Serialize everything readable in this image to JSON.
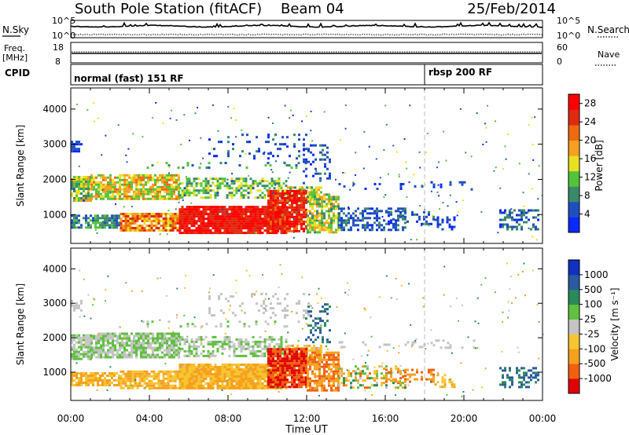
{
  "header": {
    "station": "South Pole Station (fitACF)",
    "beam": "Beam 04",
    "date": "25/Feb/2014"
  },
  "noise_panel": {
    "left_label": "N.Sky",
    "right_label": "N.Search",
    "left_ticks": [
      "10^5",
      "10^0"
    ],
    "right_ticks": [
      "10^5",
      "10^0"
    ]
  },
  "freq_panel": {
    "left_label_1": "Freq.",
    "left_label_2": "[MHz]",
    "right_label": "Nave",
    "left_ticks": [
      "18",
      "8"
    ],
    "right_ticks": [
      "60",
      "0"
    ]
  },
  "cpid_panel": {
    "label": "CPID",
    "programs": [
      {
        "name": "normal (fast) 151 RF",
        "start_hour": 0
      },
      {
        "name": "rbsp 200 RF",
        "start_hour": 18
      }
    ]
  },
  "colors": {
    "power_scale": [
      "#0a28ff",
      "#1f4fbf",
      "#3a8a6a",
      "#52c43c",
      "#e8e020",
      "#f5a020",
      "#ee6a10",
      "#e02a10",
      "#ff0000"
    ],
    "velocity_scale": [
      "#e00000",
      "#f06010",
      "#f6a020",
      "#f6c530",
      "#c4c4c4",
      "#60c040",
      "#2a8a5a",
      "#2a5aa0",
      "#1030c0"
    ]
  },
  "chart_data": [
    {
      "type": "heatmap",
      "name": "power",
      "xlabel": "Time UT",
      "ylabel": "Slant Range [km]",
      "x_ticks": [
        "00:00",
        "04:00",
        "08:00",
        "12:00",
        "16:00",
        "20:00",
        "00:00"
      ],
      "xlim_hours": [
        0,
        24
      ],
      "y_ticks": [
        1000,
        2000,
        3000,
        4000
      ],
      "ylim": [
        180,
        4600
      ],
      "colorbar_label": "Power [dB]",
      "colorbar_ticks": [
        "28",
        "24",
        "20",
        "16",
        "12",
        "8",
        "4"
      ],
      "colorbar_range": [
        0,
        30
      ]
    },
    {
      "type": "heatmap",
      "name": "velocity",
      "xlabel": "Time UT",
      "ylabel": "Slant Range [km]",
      "x_ticks": [
        "00:00",
        "04:00",
        "08:00",
        "12:00",
        "16:00",
        "20:00",
        "00:00"
      ],
      "xlim_hours": [
        0,
        24
      ],
      "y_ticks": [
        1000,
        2000,
        3000,
        4000
      ],
      "ylim": [
        180,
        4600
      ],
      "colorbar_label": "Velocity [m s⁻¹]",
      "colorbar_ticks": [
        "1000",
        "500",
        "100",
        "25",
        "-25",
        "-100",
        "-500",
        "-1000"
      ]
    }
  ],
  "time_axis": {
    "ticks": [
      "00:00",
      "04:00",
      "08:00",
      "12:00",
      "16:00",
      "20:00",
      "00:00"
    ],
    "label": "Time UT"
  }
}
